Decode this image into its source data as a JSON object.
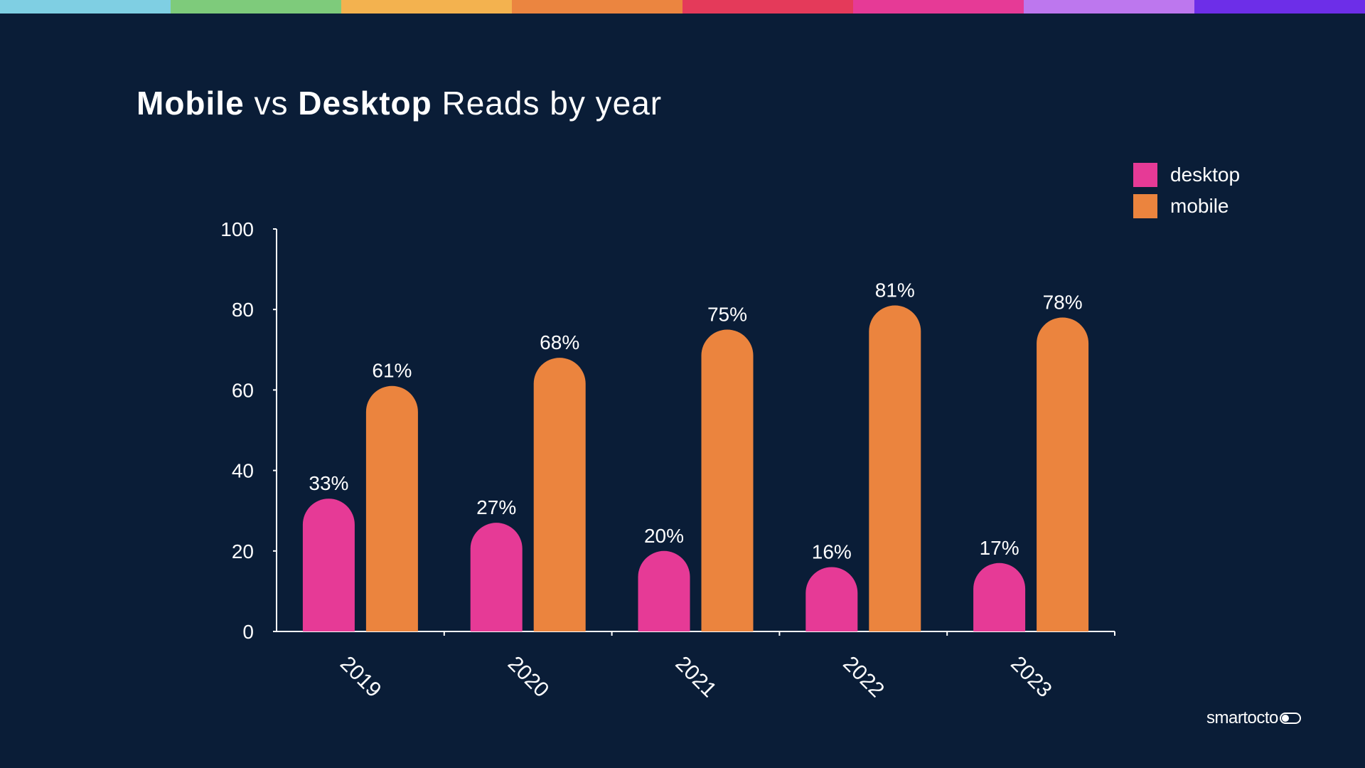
{
  "palette_bar": [
    "#7fcfe3",
    "#7ecb7b",
    "#f3b24f",
    "#eb8540",
    "#e43a5a",
    "#e63a96",
    "#bd77ee",
    "#6d2ee8"
  ],
  "title": {
    "part1": "Mobile",
    "part2": " vs ",
    "part3": "Desktop",
    "part4": " Reads by year"
  },
  "legend": [
    {
      "label": "desktop",
      "color": "#e63a96"
    },
    {
      "label": "mobile",
      "color": "#eb843e"
    }
  ],
  "logo": {
    "text": "smartocto"
  },
  "chart_data": {
    "type": "bar",
    "title": "Mobile vs Desktop Reads by year",
    "xlabel": "",
    "ylabel": "",
    "categories": [
      "2019",
      "2020",
      "2021",
      "2022",
      "2023"
    ],
    "series": [
      {
        "name": "desktop",
        "color": "#e63a96",
        "values": [
          33,
          27,
          20,
          16,
          17
        ],
        "labels": [
          "33%",
          "27%",
          "20%",
          "16%",
          "17%"
        ]
      },
      {
        "name": "mobile",
        "color": "#eb843e",
        "values": [
          61,
          68,
          75,
          81,
          78
        ],
        "labels": [
          "61%",
          "68%",
          "75%",
          "81%",
          "78%"
        ]
      }
    ],
    "ylim": [
      0,
      100
    ],
    "yticks": [
      0,
      20,
      40,
      60,
      80,
      100
    ],
    "grid": false,
    "legend_position": "top-right",
    "x_tick_rotation_deg": 45
  }
}
